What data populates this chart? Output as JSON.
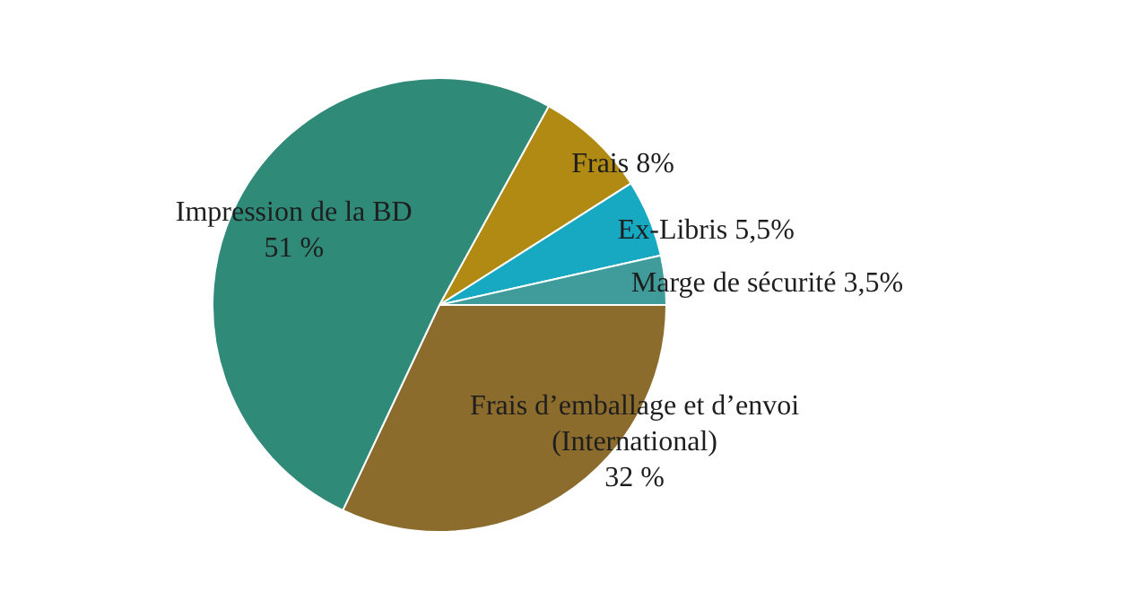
{
  "chart_data": {
    "type": "pie",
    "categories": [
      "Frais",
      "Ex-Libris",
      "Marge de sécurité",
      "Frais d’emballage et d’envoi (International)",
      "Impression de la BD"
    ],
    "values": [
      8,
      5.5,
      3.5,
      32,
      51
    ],
    "value_labels": [
      "8%",
      "5,5%",
      "3,5%",
      "32 %",
      "51 %"
    ],
    "colors": [
      "#b08a12",
      "#17a9c2",
      "#3f9c9a",
      "#8c6c2c",
      "#2f8a78"
    ],
    "legend": false
  }
}
